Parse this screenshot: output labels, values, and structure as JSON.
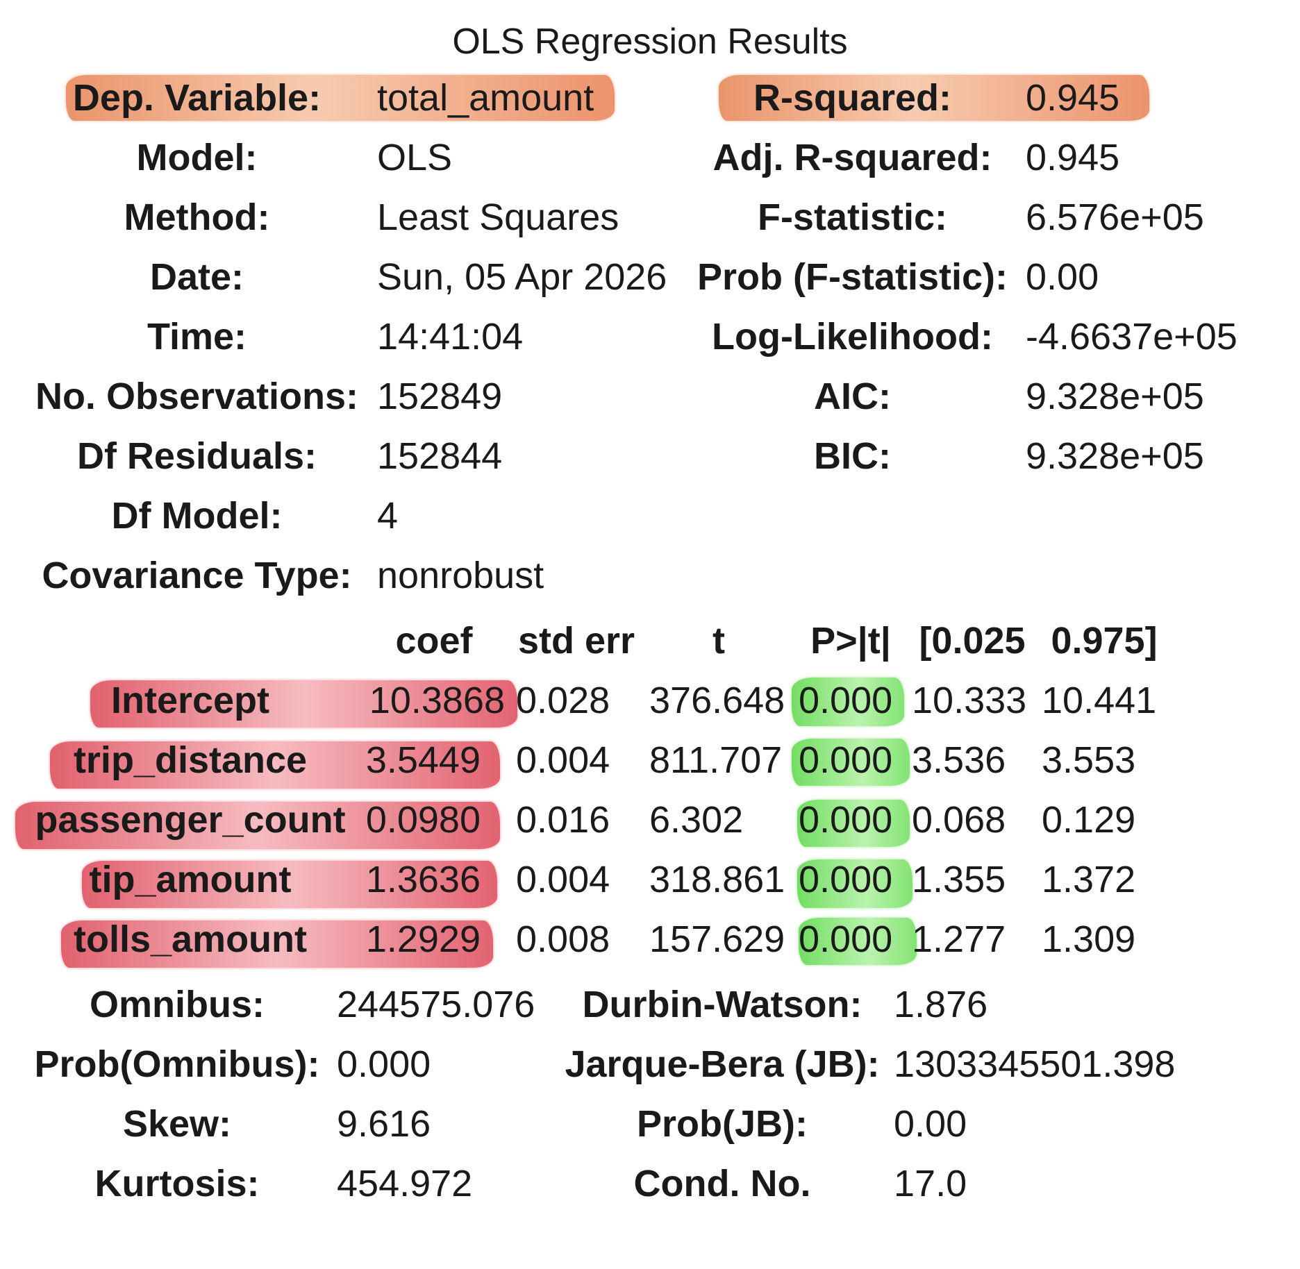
{
  "title": "OLS Regression Results",
  "header_left": [
    {
      "label": "Dep. Variable:",
      "value": "total_amount"
    },
    {
      "label": "Model:",
      "value": "OLS"
    },
    {
      "label": "Method:",
      "value": "Least Squares"
    },
    {
      "label": "Date:",
      "value": "Sun, 05 Apr 2026"
    },
    {
      "label": "Time:",
      "value": "14:41:04"
    },
    {
      "label": "No. Observations:",
      "value": "152849"
    },
    {
      "label": "Df Residuals:",
      "value": "152844"
    },
    {
      "label": "Df Model:",
      "value": "4"
    },
    {
      "label": "Covariance Type:",
      "value": "nonrobust"
    }
  ],
  "header_right": [
    {
      "label": "R-squared:",
      "value": "0.945"
    },
    {
      "label": "Adj. R-squared:",
      "value": "0.945"
    },
    {
      "label": "F-statistic:",
      "value": "6.576e+05"
    },
    {
      "label": "Prob (F-statistic):",
      "value": "0.00"
    },
    {
      "label": "Log-Likelihood:",
      "value": "-4.6637e+05"
    },
    {
      "label": "AIC:",
      "value": "9.328e+05"
    },
    {
      "label": "BIC:",
      "value": "9.328e+05"
    }
  ],
  "coef_table": {
    "headers": [
      "coef",
      "std err",
      "t",
      "P>|t|",
      "[0.025",
      "0.975]"
    ],
    "rows": [
      {
        "name": "Intercept",
        "coef": "10.3868",
        "std_err": "0.028",
        "t": "376.648",
        "p": "0.000",
        "lo": "10.333",
        "hi": "10.441"
      },
      {
        "name": "trip_distance",
        "coef": "3.5449",
        "std_err": "0.004",
        "t": "811.707",
        "p": "0.000",
        "lo": "3.536",
        "hi": "3.553"
      },
      {
        "name": "passenger_count",
        "coef": "0.0980",
        "std_err": "0.016",
        "t": "6.302",
        "p": "0.000",
        "lo": "0.068",
        "hi": "0.129"
      },
      {
        "name": "tip_amount",
        "coef": "1.3636",
        "std_err": "0.004",
        "t": "318.861",
        "p": "0.000",
        "lo": "1.355",
        "hi": "1.372"
      },
      {
        "name": "tolls_amount",
        "coef": "1.2929",
        "std_err": "0.008",
        "t": "157.629",
        "p": "0.000",
        "lo": "1.277",
        "hi": "1.309"
      }
    ]
  },
  "diag_left": [
    {
      "label": "Omnibus:",
      "value": "244575.076"
    },
    {
      "label": "Prob(Omnibus):",
      "value": "0.000"
    },
    {
      "label": "Skew:",
      "value": "9.616"
    },
    {
      "label": "Kurtosis:",
      "value": "454.972"
    }
  ],
  "diag_right": [
    {
      "label": "Durbin-Watson:",
      "value": "1.876"
    },
    {
      "label": "Jarque-Bera (JB):",
      "value": "1303345501.398"
    },
    {
      "label": "Prob(JB):",
      "value": "0.00"
    },
    {
      "label": "Cond. No.",
      "value": "17.0"
    }
  ],
  "highlight_colors": {
    "header": "#e8855a",
    "coef": "#dc4a5a",
    "pvalue": "#5ad746"
  }
}
